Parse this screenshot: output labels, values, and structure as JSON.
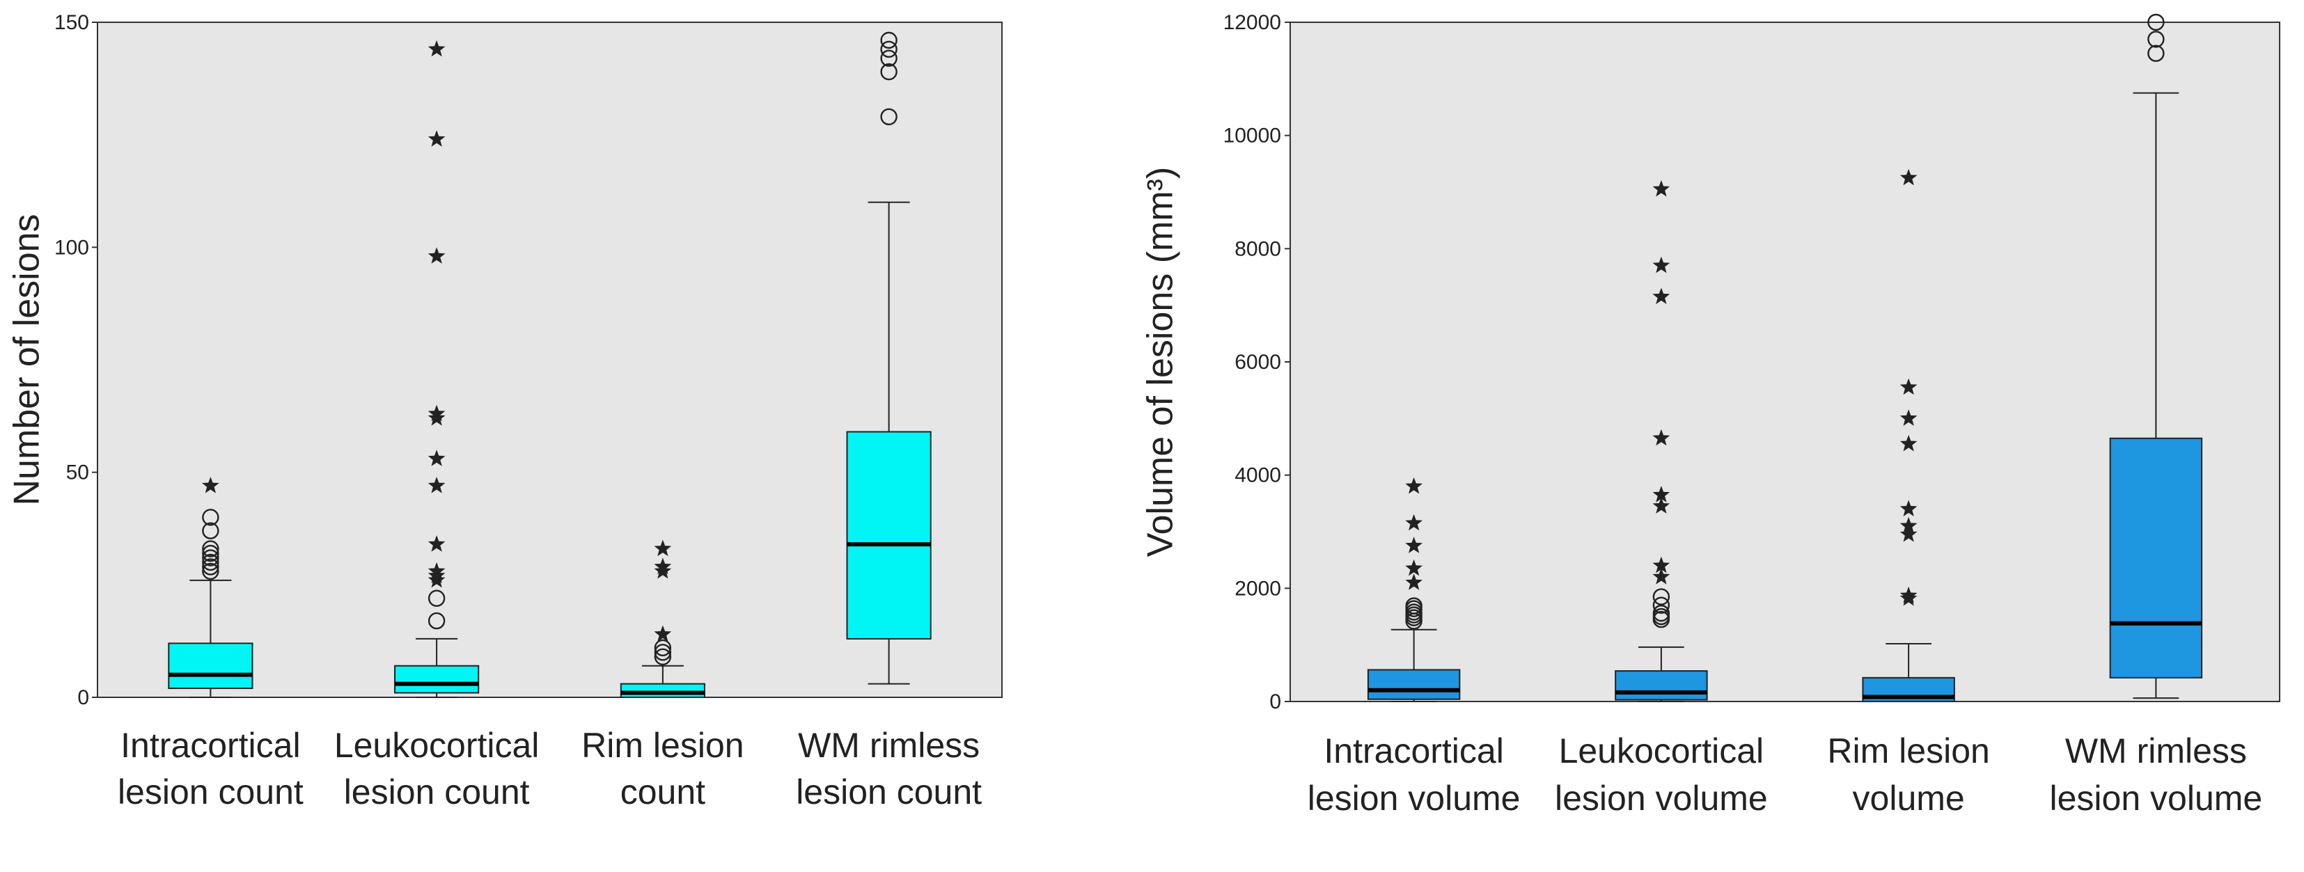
{
  "colors": {
    "left_box": "#00f5f5",
    "right_box": "#1e96e0",
    "panel_bg": "#e6e6e6"
  },
  "chart_data": [
    {
      "type": "boxplot",
      "ylabel": "Number of lesions",
      "ylim": [
        0,
        150
      ],
      "yticks": [
        0,
        50,
        100,
        150
      ],
      "box_color": "#00f5f5",
      "categories": [
        {
          "label_lines": [
            "Intracortical",
            "lesion count"
          ],
          "whisker_low": 0,
          "q1": 2,
          "median": 5,
          "q3": 12,
          "whisker_high": 26,
          "outliers": [
            28,
            29,
            30,
            31,
            32,
            33,
            37,
            40
          ],
          "extremes": [
            47
          ]
        },
        {
          "label_lines": [
            "Leukocortical",
            "lesion count"
          ],
          "whisker_low": 0,
          "q1": 1,
          "median": 3,
          "q3": 7,
          "whisker_high": 13,
          "outliers": [
            17,
            22
          ],
          "extremes": [
            26,
            27,
            28,
            34,
            47,
            53,
            62,
            63,
            98,
            124,
            144
          ]
        },
        {
          "label_lines": [
            "Rim lesion",
            "count"
          ],
          "whisker_low": 0,
          "q1": 0,
          "median": 1,
          "q3": 3,
          "whisker_high": 7,
          "outliers": [
            9,
            10,
            11
          ],
          "extremes": [
            14,
            28,
            29,
            33
          ]
        },
        {
          "label_lines": [
            "WM rimless",
            "lesion count"
          ],
          "whisker_low": 3,
          "q1": 13,
          "median": 34,
          "q3": 59,
          "whisker_high": 110,
          "outliers": [
            129,
            139,
            142,
            144,
            146
          ],
          "extremes": []
        }
      ]
    },
    {
      "type": "boxplot",
      "ylabel": "Volume of lesions (mm³)",
      "ylim": [
        0,
        12000
      ],
      "yticks": [
        0,
        2000,
        4000,
        6000,
        8000,
        10000,
        12000
      ],
      "box_color": "#1e96e0",
      "categories": [
        {
          "label_lines": [
            "Intracortical",
            "lesion volume"
          ],
          "whisker_low": 0,
          "q1": 40,
          "median": 200,
          "q3": 560,
          "whisker_high": 1270,
          "outliers": [
            1420,
            1480,
            1530,
            1580,
            1640,
            1690
          ],
          "extremes": [
            2100,
            2350,
            2750,
            3150,
            3800
          ]
        },
        {
          "label_lines": [
            "Leukocortical",
            "lesion volume"
          ],
          "whisker_low": 0,
          "q1": 30,
          "median": 160,
          "q3": 540,
          "whisker_high": 960,
          "outliers": [
            1450,
            1500,
            1560,
            1700,
            1850
          ],
          "extremes": [
            2200,
            2400,
            3450,
            3650,
            4650,
            7150,
            7700,
            9050
          ]
        },
        {
          "label_lines": [
            "Rim lesion",
            "volume"
          ],
          "whisker_low": 0,
          "q1": 0,
          "median": 80,
          "q3": 420,
          "whisker_high": 1020,
          "outliers": [],
          "extremes": [
            1820,
            1870,
            2950,
            3100,
            3400,
            4550,
            5000,
            5550,
            9250
          ]
        },
        {
          "label_lines": [
            "WM rimless",
            "lesion volume"
          ],
          "whisker_low": 60,
          "q1": 420,
          "median": 1380,
          "q3": 4650,
          "whisker_high": 10750,
          "outliers": [
            11450,
            11700,
            12000
          ],
          "extremes": []
        }
      ]
    }
  ]
}
